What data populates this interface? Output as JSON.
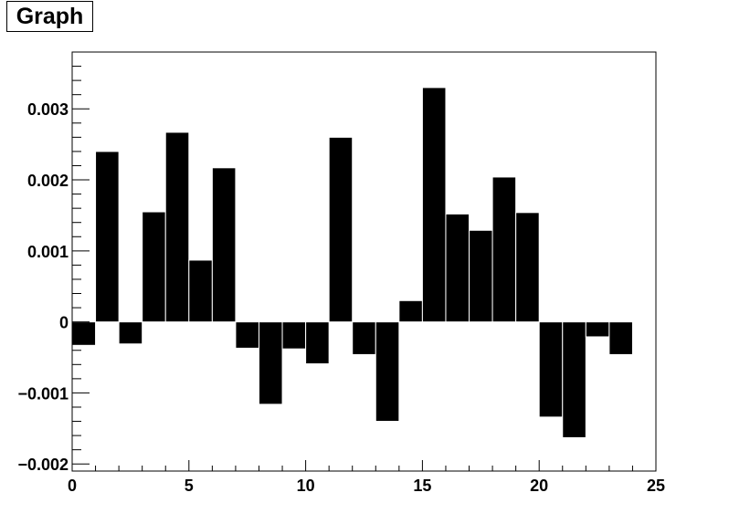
{
  "title": "Graph",
  "colors": {
    "bar_fill": "#000000",
    "bar_edge": "#ffffff",
    "axis": "#000000",
    "background": "#ffffff"
  },
  "chart_data": {
    "type": "bar",
    "title": "Graph",
    "xlabel": "",
    "ylabel": "",
    "xlim": [
      0,
      25
    ],
    "ylim": [
      -0.0021,
      0.0038
    ],
    "grid": false,
    "bar_width": 1,
    "x": [
      0,
      1,
      2,
      3,
      4,
      5,
      6,
      7,
      8,
      9,
      10,
      11,
      12,
      13,
      14,
      15,
      16,
      17,
      18,
      19,
      20,
      21,
      22,
      23
    ],
    "values": [
      -0.00033,
      0.0024,
      -0.00031,
      0.00155,
      0.00267,
      0.00087,
      0.00217,
      -0.00037,
      -0.00116,
      -0.00038,
      -0.00059,
      0.0026,
      -0.00046,
      -0.0014,
      0.0003,
      0.0033,
      0.00152,
      0.00129,
      0.00204,
      0.00154,
      -0.00134,
      -0.00163,
      -0.00021,
      -0.00046
    ],
    "x_ticks": [
      0,
      5,
      10,
      15,
      20,
      25
    ],
    "x_tick_labels": [
      "0",
      "5",
      "10",
      "15",
      "20",
      "25"
    ],
    "y_ticks": [
      -0.002,
      -0.001,
      0,
      0.001,
      0.002,
      0.003
    ],
    "y_tick_labels": [
      "−0.002",
      "−0.001",
      "0",
      "0.001",
      "0.002",
      "0.003"
    ]
  }
}
